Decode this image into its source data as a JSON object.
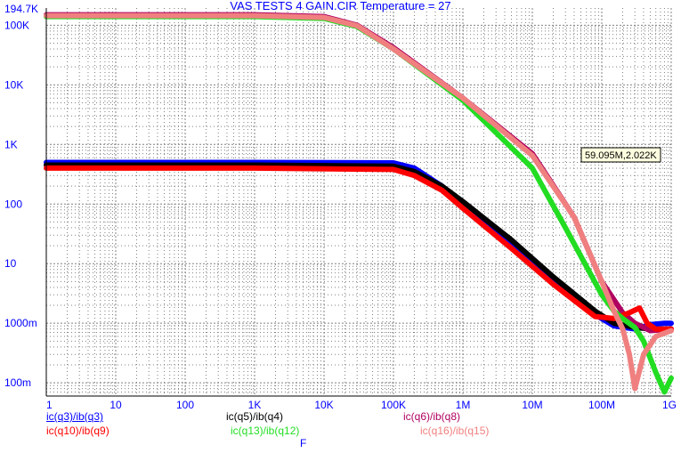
{
  "header": {
    "title": "VAS TESTS 4 GAIN.CIR Temperature = 27"
  },
  "colors": {
    "axis": "#000000",
    "grid": "#808080",
    "label": "#0000ff",
    "blue": "#0000ff",
    "red": "#ff0000",
    "black": "#000000",
    "green": "#22dd22",
    "pink": "#f08080"
  },
  "cursor_readout": "59.095M,2.022K",
  "x_axis_label": "F",
  "legend": [
    {
      "text": "ic(q3)/ib(q3)",
      "color": "#0000ff"
    },
    {
      "text": "ic(q5)/ib(q4)",
      "color": "#000000"
    },
    {
      "text": "ic(q6)/ib(q8)",
      "color": "#b00060"
    },
    {
      "text": "ic(q10)/ib(q9)",
      "color": "#ff0000"
    },
    {
      "text": "ic(q13)/ib(q12)",
      "color": "#22dd22"
    },
    {
      "text": "ic(q16)/ib(q15)",
      "color": "#f08080"
    }
  ],
  "chart_data": {
    "type": "line",
    "title": "VAS TESTS 4 GAIN.CIR Temperature = 27",
    "xlabel": "F",
    "ylabel": "",
    "x_scale": "log",
    "y_scale": "log",
    "xlim": [
      1,
      1000000000
    ],
    "ylim": [
      0.06,
      194700
    ],
    "x_tick_labels": [
      "1",
      "10",
      "100",
      "1K",
      "10K",
      "100K",
      "1M",
      "10M",
      "100M",
      "1G"
    ],
    "y_tick_labels": [
      "194.7K",
      "100K",
      "10K",
      "1K",
      "100",
      "10",
      "1000m",
      "100m"
    ],
    "grid": true,
    "series": [
      {
        "name": "ic(q3)/ib(q3)",
        "color": "#0000ff",
        "x": [
          1,
          1000,
          100000,
          200000,
          500000,
          1000000,
          5000000,
          20000000,
          80000000,
          150000000,
          300000000,
          500000000,
          800000000,
          1000000000
        ],
        "y": [
          500,
          500,
          490,
          400,
          200,
          100,
          20,
          5,
          1.4,
          0.9,
          0.8,
          0.95,
          1.0,
          1.0
        ]
      },
      {
        "name": "ic(q5)/ib(q4)",
        "color": "#000000",
        "x": [
          1,
          1000,
          100000,
          200000,
          500000,
          1000000,
          5000000,
          20000000,
          80000000,
          150000000,
          300000000,
          500000000,
          800000000,
          1000000000
        ],
        "y": [
          450,
          450,
          430,
          350,
          200,
          110,
          25,
          6,
          1.6,
          1.0,
          0.85,
          0.8,
          0.8,
          0.8
        ]
      },
      {
        "name": "ic(q6)/ib(q8)",
        "color": "#b00060",
        "x": [
          1,
          1000,
          10000,
          30000,
          100000,
          1000000,
          10000000,
          40000000,
          100000000,
          200000000,
          300000000,
          500000000,
          1000000000
        ],
        "y": [
          150000,
          150000,
          140000,
          100000,
          42000,
          6000,
          700,
          60,
          5,
          1.5,
          1.0,
          0.75,
          0.8
        ]
      },
      {
        "name": "ic(q10)/ib(q9)",
        "color": "#ff0000",
        "x": [
          1,
          1000,
          100000,
          200000,
          500000,
          1000000,
          5000000,
          20000000,
          80000000,
          150000000,
          250000000,
          350000000,
          450000000,
          600000000,
          1000000000
        ],
        "y": [
          400,
          400,
          380,
          300,
          170,
          85,
          18,
          4.5,
          1.3,
          1.2,
          1.5,
          1.8,
          1.0,
          0.8,
          0.8
        ]
      },
      {
        "name": "ic(q13)/ib(q12)",
        "color": "#22dd22",
        "x": [
          1,
          1000,
          10000,
          30000,
          100000,
          1000000,
          10000000,
          30000000,
          100000000,
          150000000,
          200000000,
          300000000,
          400000000,
          600000000,
          800000000,
          1000000000
        ],
        "y": [
          140000,
          140000,
          130000,
          95000,
          40000,
          5500,
          400,
          40,
          3,
          1.6,
          1.2,
          0.85,
          0.5,
          0.15,
          0.07,
          0.12
        ]
      },
      {
        "name": "ic(q16)/ib(q15)",
        "color": "#f08080",
        "x": [
          1,
          1000,
          10000,
          30000,
          100000,
          1000000,
          10000000,
          40000000,
          100000000,
          150000000,
          200000000,
          250000000,
          300000000,
          400000000,
          600000000,
          1000000000
        ],
        "y": [
          145000,
          145000,
          135000,
          98000,
          40000,
          6000,
          650,
          60,
          5,
          1.6,
          0.8,
          0.3,
          0.08,
          0.3,
          0.6,
          0.75
        ]
      }
    ]
  }
}
